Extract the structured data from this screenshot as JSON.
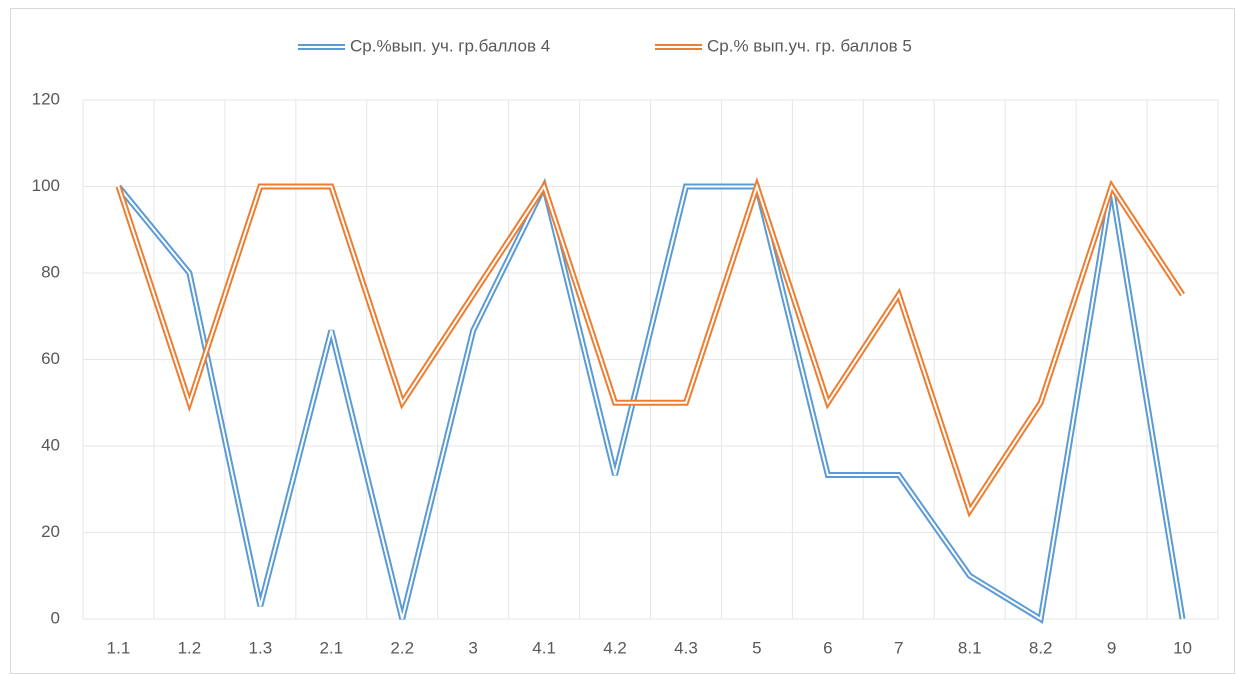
{
  "chart_data": {
    "type": "line",
    "categories": [
      "1.1",
      "1.2",
      "1.3",
      "2.1",
      "2.2",
      "3",
      "4.1",
      "4.2",
      "4.3",
      "5",
      "6",
      "7",
      "8.1",
      "8.2",
      "9",
      "10"
    ],
    "series": [
      {
        "name": "Ср.%вып. уч. гр.баллов 4",
        "color": "#5b9bd5",
        "values": [
          100,
          80,
          3,
          66.7,
          0,
          66.7,
          100,
          33.3,
          100,
          100,
          33.3,
          33.3,
          10,
          0,
          100,
          0
        ]
      },
      {
        "name": "Ср.% вып.уч. гр. баллов 5",
        "color": "#ed7d31",
        "values": [
          100,
          50,
          100,
          100,
          50,
          75,
          100,
          50,
          50,
          100,
          50,
          75,
          25,
          50,
          100,
          75
        ]
      }
    ],
    "ylim": [
      0,
      120
    ],
    "yticks": [
      0,
      20,
      40,
      60,
      80,
      100,
      120
    ],
    "grid": true,
    "legend": "top"
  }
}
